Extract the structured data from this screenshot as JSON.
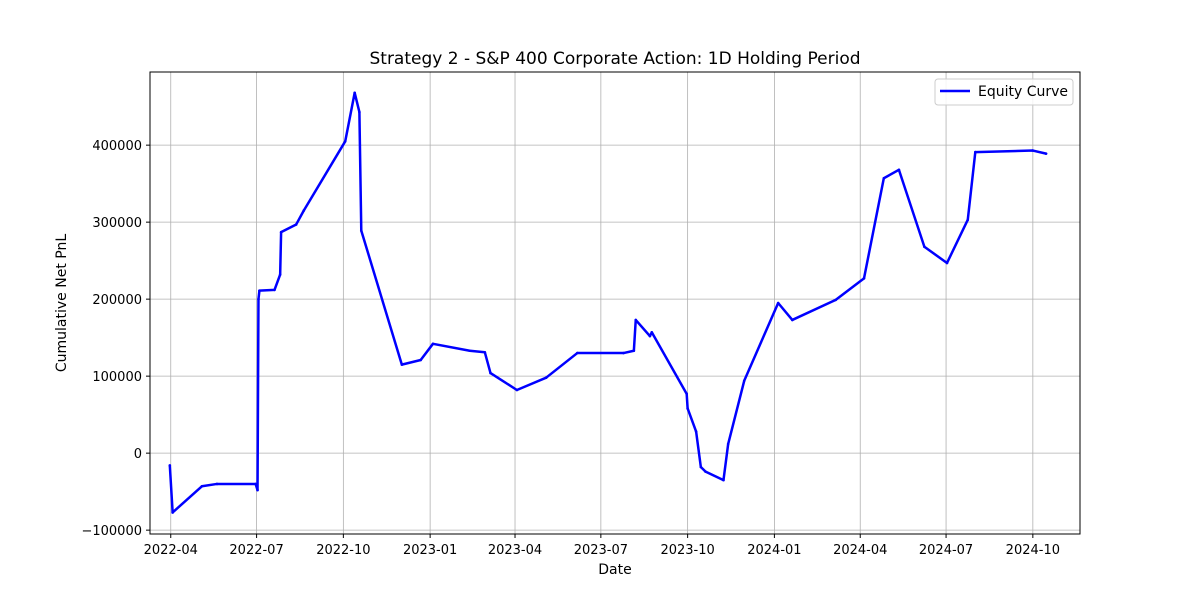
{
  "chart_data": {
    "type": "line",
    "title": "Strategy 2 - S&P 400 Corporate Action: 1D Holding Period",
    "xlabel": "Date",
    "ylabel": "Cumulative Net PnL",
    "xlim": [
      "2022-03-10",
      "2024-11-20"
    ],
    "ylim": [
      -105000,
      495000
    ],
    "x_ticks": [
      "2022-04",
      "2022-07",
      "2022-10",
      "2023-01",
      "2023-04",
      "2023-07",
      "2023-10",
      "2024-01",
      "2024-04",
      "2024-07",
      "2024-10"
    ],
    "y_ticks": [
      {
        "value": -100000,
        "label": "−100000"
      },
      {
        "value": 0,
        "label": "0"
      },
      {
        "value": 100000,
        "label": "100000"
      },
      {
        "value": 200000,
        "label": "200000"
      },
      {
        "value": 300000,
        "label": "300000"
      },
      {
        "value": 400000,
        "label": "400000"
      }
    ],
    "grid": true,
    "legend_position": "top-right",
    "series": [
      {
        "name": "Equity Curve",
        "color": "#0000ff",
        "points": [
          {
            "x": "2022-03-31",
            "y": -16000
          },
          {
            "x": "2022-04-03",
            "y": -77000
          },
          {
            "x": "2022-05-04",
            "y": -43000
          },
          {
            "x": "2022-05-20",
            "y": -40000
          },
          {
            "x": "2022-06-30",
            "y": -40000
          },
          {
            "x": "2022-07-02",
            "y": -48000
          },
          {
            "x": "2022-07-03",
            "y": 200000
          },
          {
            "x": "2022-07-04",
            "y": 211000
          },
          {
            "x": "2022-07-20",
            "y": 212000
          },
          {
            "x": "2022-07-26",
            "y": 232000
          },
          {
            "x": "2022-07-27",
            "y": 287000
          },
          {
            "x": "2022-08-12",
            "y": 297000
          },
          {
            "x": "2022-08-20",
            "y": 315000
          },
          {
            "x": "2022-10-03",
            "y": 405000
          },
          {
            "x": "2022-10-13",
            "y": 468000
          },
          {
            "x": "2022-10-18",
            "y": 443000
          },
          {
            "x": "2022-10-20",
            "y": 289000
          },
          {
            "x": "2022-12-02",
            "y": 115000
          },
          {
            "x": "2022-12-22",
            "y": 121000
          },
          {
            "x": "2023-01-04",
            "y": 142000
          },
          {
            "x": "2023-02-12",
            "y": 133000
          },
          {
            "x": "2023-02-28",
            "y": 131000
          },
          {
            "x": "2023-03-06",
            "y": 104000
          },
          {
            "x": "2023-04-03",
            "y": 82000
          },
          {
            "x": "2023-05-04",
            "y": 98000
          },
          {
            "x": "2023-06-06",
            "y": 130000
          },
          {
            "x": "2023-07-25",
            "y": 130000
          },
          {
            "x": "2023-08-05",
            "y": 133000
          },
          {
            "x": "2023-08-07",
            "y": 173000
          },
          {
            "x": "2023-08-22",
            "y": 152000
          },
          {
            "x": "2023-08-24",
            "y": 157000
          },
          {
            "x": "2023-09-30",
            "y": 77000
          },
          {
            "x": "2023-10-01",
            "y": 58000
          },
          {
            "x": "2023-10-10",
            "y": 28000
          },
          {
            "x": "2023-10-15",
            "y": -18000
          },
          {
            "x": "2023-10-20",
            "y": -24000
          },
          {
            "x": "2023-11-08",
            "y": -35000
          },
          {
            "x": "2023-11-13",
            "y": 12000
          },
          {
            "x": "2023-11-30",
            "y": 94000
          },
          {
            "x": "2024-01-05",
            "y": 195000
          },
          {
            "x": "2024-01-20",
            "y": 173000
          },
          {
            "x": "2024-03-06",
            "y": 199000
          },
          {
            "x": "2024-04-05",
            "y": 227000
          },
          {
            "x": "2024-04-26",
            "y": 357000
          },
          {
            "x": "2024-05-12",
            "y": 368000
          },
          {
            "x": "2024-06-08",
            "y": 268000
          },
          {
            "x": "2024-07-02",
            "y": 247000
          },
          {
            "x": "2024-07-24",
            "y": 303000
          },
          {
            "x": "2024-08-01",
            "y": 391000
          },
          {
            "x": "2024-10-01",
            "y": 393000
          },
          {
            "x": "2024-10-15",
            "y": 389000
          }
        ]
      }
    ]
  }
}
